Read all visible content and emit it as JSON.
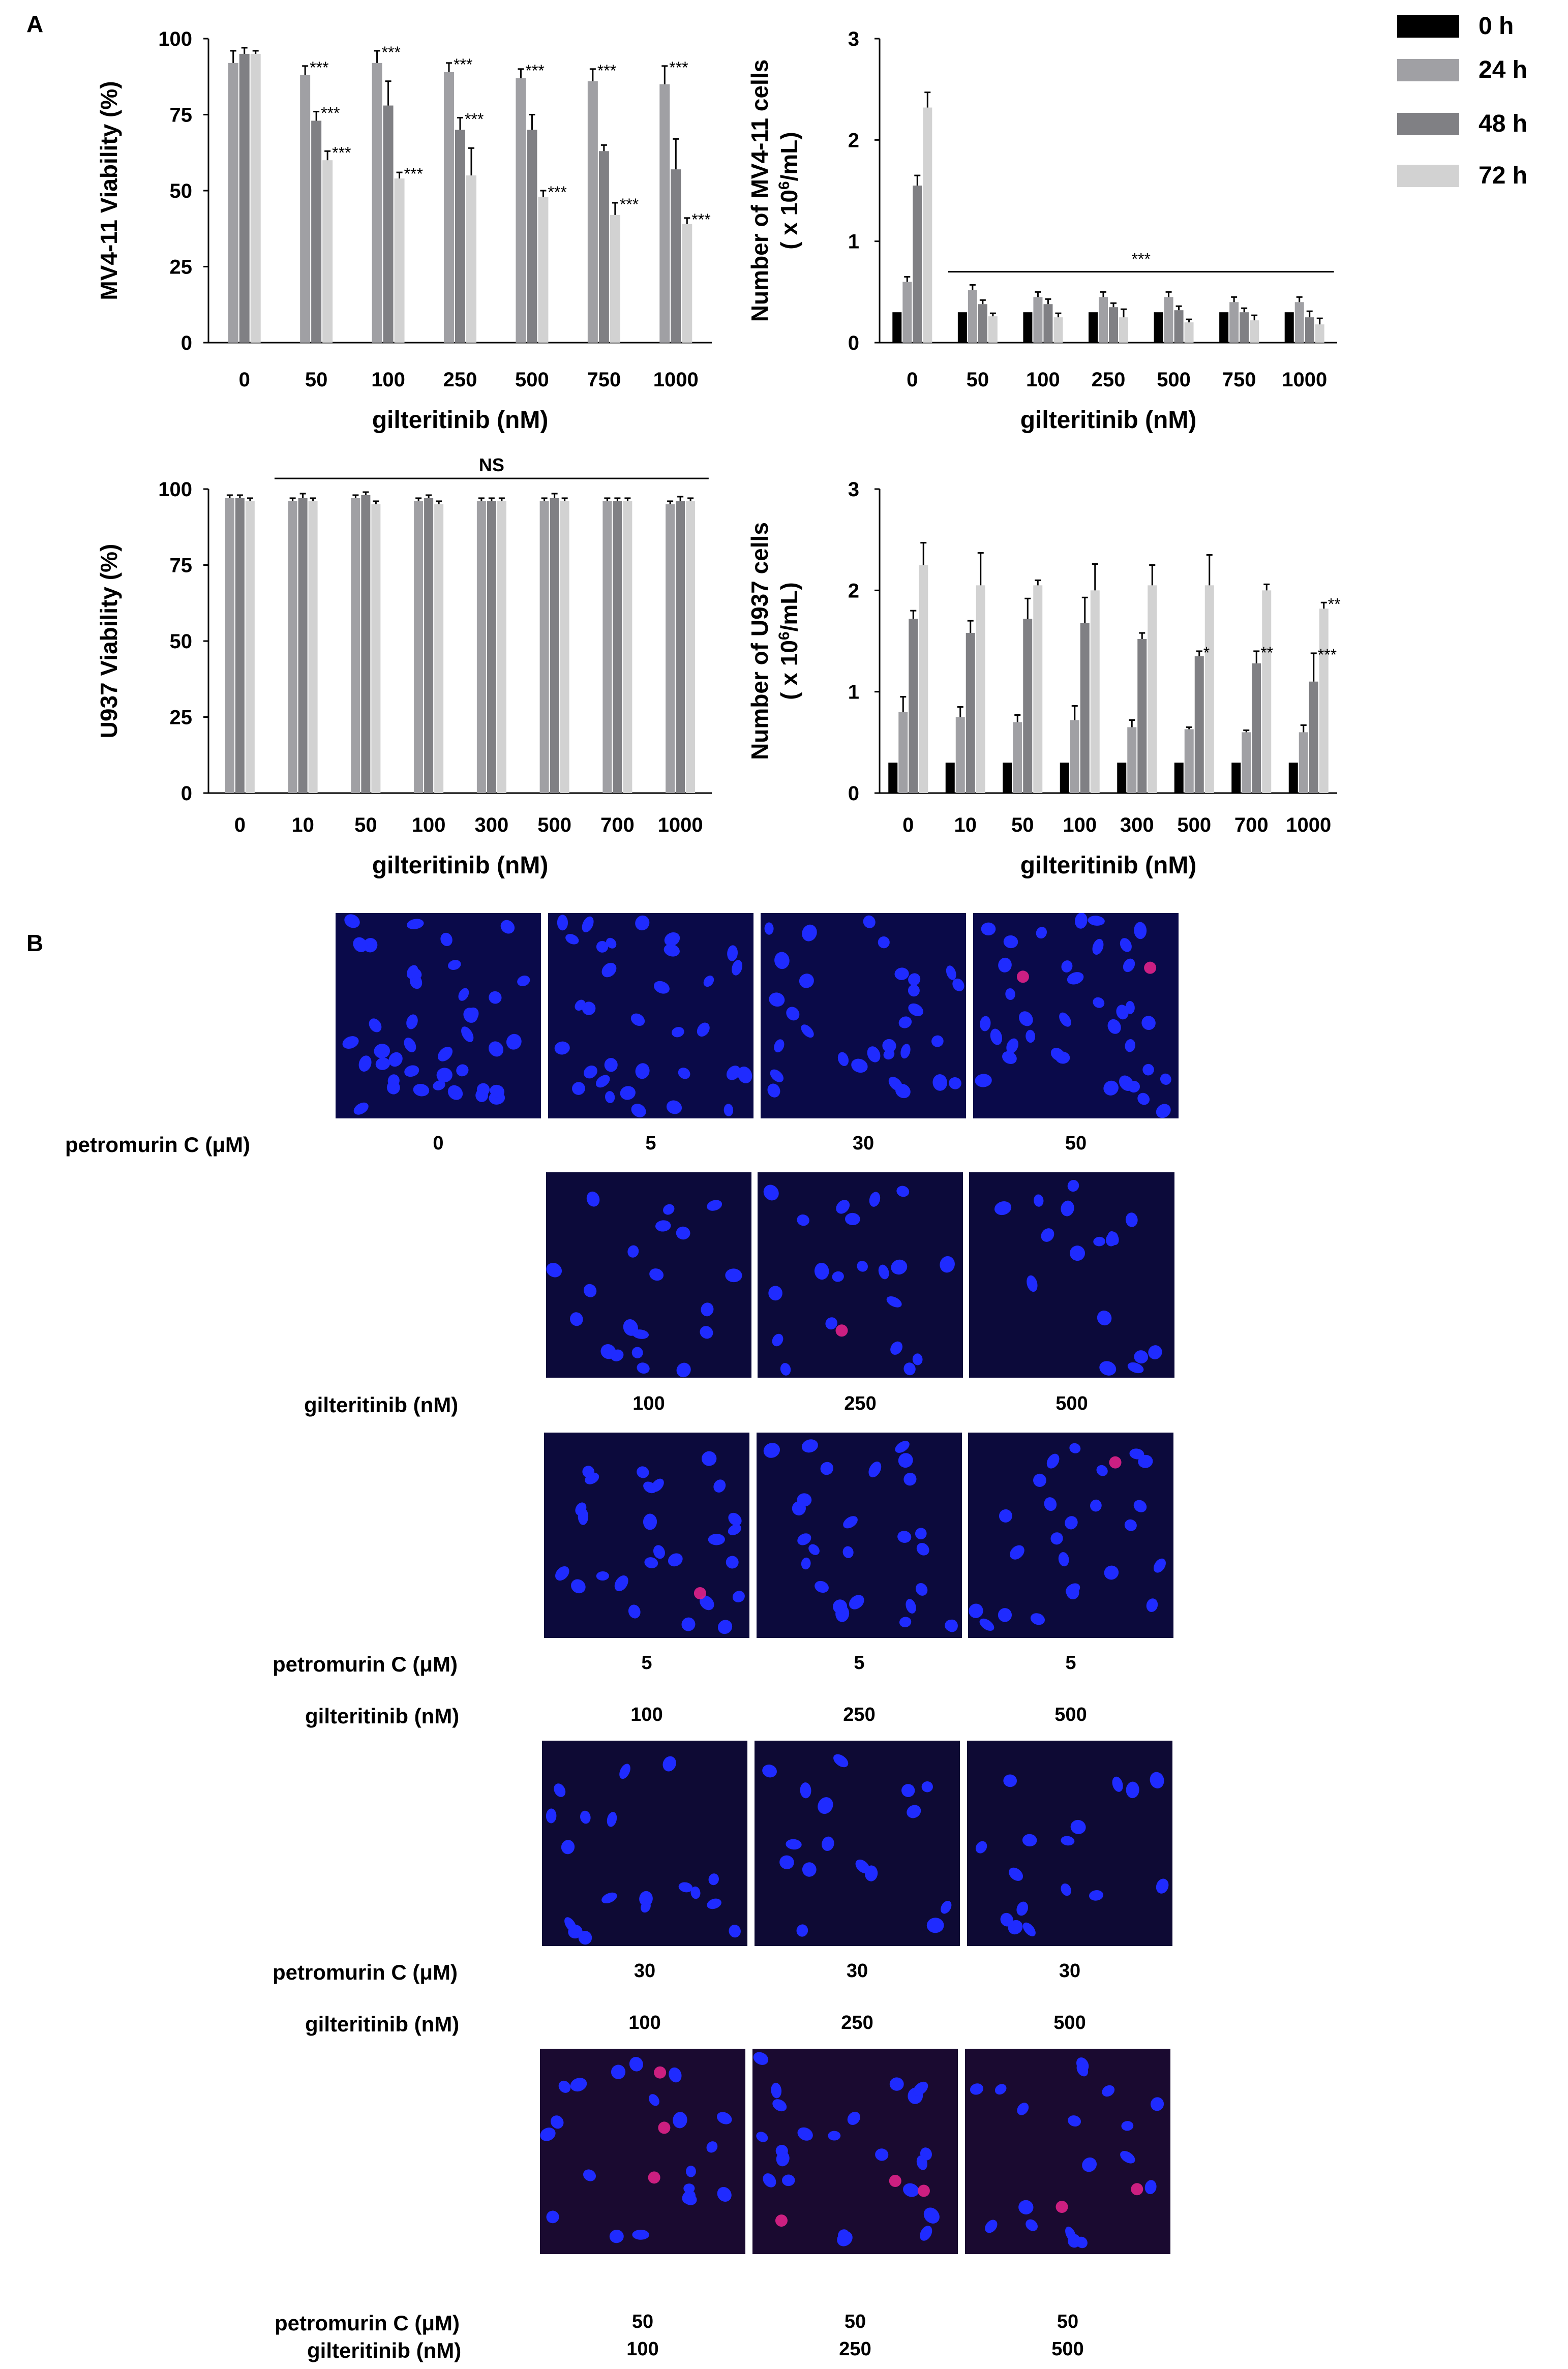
{
  "panels": {
    "A": "A",
    "B": "B"
  },
  "legend": [
    {
      "label": "0 h",
      "color": "#000000"
    },
    {
      "label": "24 h",
      "color": "#a0a0a4"
    },
    {
      "label": "48 h",
      "color": "#808084"
    },
    {
      "label": "72 h",
      "color": "#d2d2d2"
    }
  ],
  "chart_data": [
    {
      "id": "mv4-11-viability",
      "type": "bar",
      "ylabel": "MV4-11 Viability (%)",
      "xlabel": "gilteritinib (nM)",
      "categories": [
        "0",
        "50",
        "100",
        "250",
        "500",
        "750",
        "1000"
      ],
      "ylim": [
        0,
        100
      ],
      "yticks": [
        "0",
        "25",
        "50",
        "75",
        "100"
      ],
      "series": [
        {
          "name": "24 h",
          "color": "#a0a0a4",
          "values": [
            92,
            88,
            92,
            89,
            87,
            86,
            85
          ],
          "errors": [
            4,
            3,
            4,
            3,
            3,
            4,
            6
          ]
        },
        {
          "name": "48 h",
          "color": "#808084",
          "values": [
            95,
            73,
            78,
            70,
            70,
            63,
            57
          ],
          "errors": [
            2,
            3,
            8,
            4,
            5,
            2,
            10
          ]
        },
        {
          "name": "72 h",
          "color": "#d2d2d2",
          "values": [
            95,
            60,
            54,
            55,
            48,
            42,
            39
          ],
          "errors": [
            1,
            3,
            2,
            9,
            2,
            4,
            2
          ]
        }
      ],
      "annotations": [
        {
          "cat": 1,
          "series": 0,
          "text": "***"
        },
        {
          "cat": 1,
          "series": 1,
          "text": "***"
        },
        {
          "cat": 1,
          "series": 2,
          "text": "***"
        },
        {
          "cat": 2,
          "series": 0,
          "text": "***"
        },
        {
          "cat": 2,
          "series": 2,
          "text": "***"
        },
        {
          "cat": 3,
          "series": 0,
          "text": "***"
        },
        {
          "cat": 3,
          "series": 1,
          "text": "***"
        },
        {
          "cat": 4,
          "series": 0,
          "text": "***"
        },
        {
          "cat": 4,
          "series": 2,
          "text": "***"
        },
        {
          "cat": 5,
          "series": 0,
          "text": "***"
        },
        {
          "cat": 5,
          "series": 2,
          "text": "***"
        },
        {
          "cat": 6,
          "series": 0,
          "text": "***"
        },
        {
          "cat": 6,
          "series": 2,
          "text": "***"
        }
      ]
    },
    {
      "id": "mv4-11-count",
      "type": "bar",
      "ylabel": "Number of MV4-11 cells",
      "ylabel2_prefix": "( x 10",
      "ylabel2_sup": "6",
      "ylabel2_suffix": "/mL)",
      "xlabel": "gilteritinib (nM)",
      "categories": [
        "0",
        "50",
        "100",
        "250",
        "500",
        "750",
        "1000"
      ],
      "ylim": [
        0,
        3
      ],
      "yticks": [
        "0",
        "1",
        "2",
        "3"
      ],
      "series": [
        {
          "name": "0 h",
          "color": "#000000",
          "values": [
            0.3,
            0.3,
            0.3,
            0.3,
            0.3,
            0.3,
            0.3
          ],
          "errors": [
            0,
            0,
            0,
            0,
            0,
            0,
            0
          ]
        },
        {
          "name": "24 h",
          "color": "#a0a0a4",
          "values": [
            0.6,
            0.52,
            0.45,
            0.45,
            0.45,
            0.4,
            0.4
          ],
          "errors": [
            0.05,
            0.05,
            0.05,
            0.05,
            0.05,
            0.05,
            0.05
          ]
        },
        {
          "name": "48 h",
          "color": "#808084",
          "values": [
            1.55,
            0.38,
            0.38,
            0.35,
            0.32,
            0.3,
            0.25
          ],
          "errors": [
            0.1,
            0.04,
            0.05,
            0.04,
            0.04,
            0.04,
            0.06
          ]
        },
        {
          "name": "72 h",
          "color": "#d2d2d2",
          "values": [
            2.32,
            0.26,
            0.25,
            0.25,
            0.2,
            0.22,
            0.18
          ],
          "errors": [
            0.15,
            0.03,
            0.04,
            0.08,
            0.03,
            0.05,
            0.06
          ]
        }
      ],
      "bracket": {
        "from": 1,
        "to": 6,
        "y": 0.7,
        "text": "***"
      }
    },
    {
      "id": "u937-viability",
      "type": "bar",
      "ylabel": "U937 Viability (%)",
      "xlabel": "gilteritinib (nM)",
      "categories": [
        "0",
        "10",
        "50",
        "100",
        "300",
        "500",
        "700",
        "1000"
      ],
      "ylim": [
        0,
        100
      ],
      "yticks": [
        "0",
        "25",
        "50",
        "75",
        "100"
      ],
      "series": [
        {
          "name": "24 h",
          "color": "#a0a0a4",
          "values": [
            97,
            96,
            97,
            96,
            96,
            96,
            96,
            95
          ],
          "errors": [
            1,
            1,
            1,
            1,
            1,
            1,
            1,
            1
          ]
        },
        {
          "name": "48 h",
          "color": "#808084",
          "values": [
            97,
            97,
            98,
            97,
            96,
            97,
            96,
            96
          ],
          "errors": [
            1,
            1.5,
            1,
            1,
            1,
            1.5,
            1,
            1.5
          ]
        },
        {
          "name": "72 h",
          "color": "#d2d2d2",
          "values": [
            96,
            96,
            95,
            95,
            96,
            96,
            96,
            96
          ],
          "errors": [
            1,
            1,
            1,
            1,
            1,
            1,
            1,
            1
          ]
        }
      ],
      "bracket": {
        "from": 1,
        "to": 7,
        "y": 103.5,
        "text": "NS"
      }
    },
    {
      "id": "u937-count",
      "type": "bar",
      "ylabel": "Number of U937 cells",
      "ylabel2_prefix": "( x 10",
      "ylabel2_sup": "6",
      "ylabel2_suffix": "/mL)",
      "xlabel": "gilteritinib (nM)",
      "categories": [
        "0",
        "10",
        "50",
        "100",
        "300",
        "500",
        "700",
        "1000"
      ],
      "ylim": [
        0,
        3
      ],
      "yticks": [
        "0",
        "1",
        "2",
        "3"
      ],
      "series": [
        {
          "name": "0 h",
          "color": "#000000",
          "values": [
            0.3,
            0.3,
            0.3,
            0.3,
            0.3,
            0.3,
            0.3,
            0.3
          ],
          "errors": [
            0,
            0,
            0,
            0,
            0,
            0,
            0,
            0
          ]
        },
        {
          "name": "24 h",
          "color": "#a0a0a4",
          "values": [
            0.8,
            0.75,
            0.7,
            0.72,
            0.65,
            0.63,
            0.6,
            0.6
          ],
          "errors": [
            0.15,
            0.1,
            0.07,
            0.14,
            0.07,
            0.02,
            0.02,
            0.07
          ]
        },
        {
          "name": "48 h",
          "color": "#808084",
          "values": [
            1.72,
            1.58,
            1.72,
            1.68,
            1.52,
            1.35,
            1.28,
            1.1
          ],
          "errors": [
            0.08,
            0.12,
            0.2,
            0.25,
            0.06,
            0.05,
            0.12,
            0.28
          ]
        },
        {
          "name": "72 h",
          "color": "#d2d2d2",
          "values": [
            2.25,
            2.05,
            2.05,
            2.0,
            2.05,
            2.05,
            2.0,
            1.82
          ],
          "errors": [
            0.22,
            0.32,
            0.05,
            0.26,
            0.2,
            0.3,
            0.06,
            0.06
          ]
        }
      ],
      "annotations": [
        {
          "cat": 5,
          "series": 2,
          "text": "*"
        },
        {
          "cat": 6,
          "series": 2,
          "text": "**"
        },
        {
          "cat": 7,
          "series": 2,
          "text": "***"
        },
        {
          "cat": 7,
          "series": 3,
          "text": "**"
        }
      ]
    }
  ],
  "microscopy": {
    "row1": {
      "label": "petromurin C (μM)",
      "values": [
        "0",
        "5",
        "30",
        "50"
      ]
    },
    "row2": {
      "label": "gilteritinib (nM)",
      "values": [
        "100",
        "250",
        "500"
      ]
    },
    "row3": {
      "label_petro": "petromurin C (μM)",
      "petro": [
        "5",
        "5",
        "5"
      ],
      "label_gilt": "gilteritinib (nM)",
      "gilt": [
        "100",
        "250",
        "500"
      ]
    },
    "row4": {
      "label_petro": "petromurin C (μM)",
      "petro": [
        "30",
        "30",
        "30"
      ],
      "label_gilt": "gilteritinib (nM)",
      "gilt": [
        "100",
        "250",
        "500"
      ]
    },
    "row5": {
      "label_petro": "petromurin C (μM)",
      "petro": [
        "50",
        "50",
        "50"
      ],
      "label_gilt": "gilteritinib (nM)",
      "gilt": [
        "100",
        "250",
        "500"
      ]
    }
  }
}
